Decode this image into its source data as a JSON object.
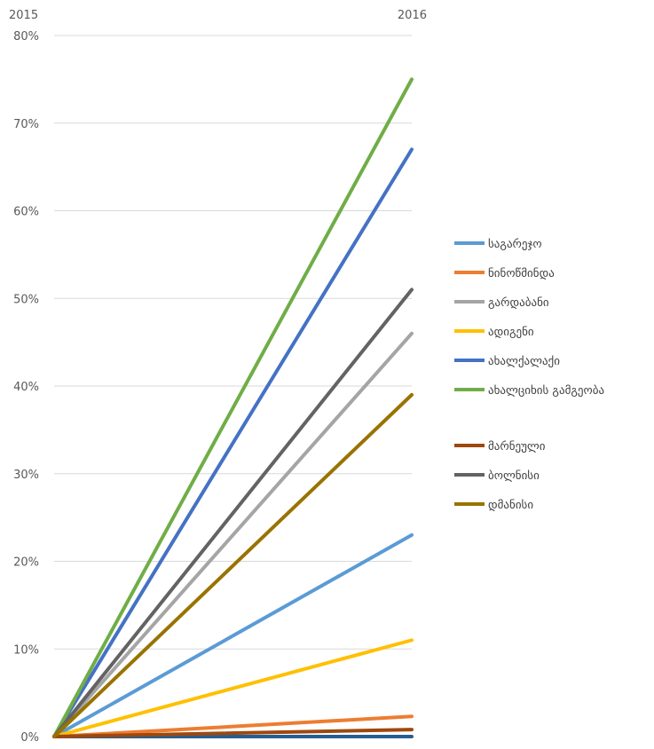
{
  "chart_data": {
    "type": "line",
    "categories": [
      "2015",
      "2016"
    ],
    "ylim": [
      0,
      80
    ],
    "y_ticks": [
      "0%",
      "10%",
      "20%",
      "30%",
      "40%",
      "50%",
      "60%",
      "70%",
      "80%"
    ],
    "grid": true,
    "legend_position": "right",
    "series": [
      {
        "name": "საგარეჯო",
        "values": [
          0,
          23.0
        ],
        "color": "#5B9BD5"
      },
      {
        "name": "ნინოწმინდა",
        "values": [
          0,
          2.3
        ],
        "color": "#ED7D31"
      },
      {
        "name": "გარდაბანი",
        "values": [
          0,
          46.0
        ],
        "color": "#A5A5A5"
      },
      {
        "name": "ადიგენი",
        "values": [
          0,
          11.0
        ],
        "color": "#FFC000"
      },
      {
        "name": "ახალქალაქი",
        "values": [
          0,
          67.0
        ],
        "color": "#4472C4"
      },
      {
        "name": "ახალციხის გამგეობა",
        "values": [
          0,
          75.0
        ],
        "color": "#70AD47"
      },
      {
        "name": "მარნეული",
        "values": [
          0,
          0.8
        ],
        "color": "#9E480E"
      },
      {
        "name": "ბოლნისი",
        "values": [
          0,
          51.0
        ],
        "color": "#636363"
      },
      {
        "name": "დმანისი",
        "values": [
          0,
          39.0
        ],
        "color": "#997300"
      }
    ],
    "extra_series": [
      {
        "values": [
          0,
          0.0
        ],
        "color": "#255E91"
      }
    ]
  }
}
